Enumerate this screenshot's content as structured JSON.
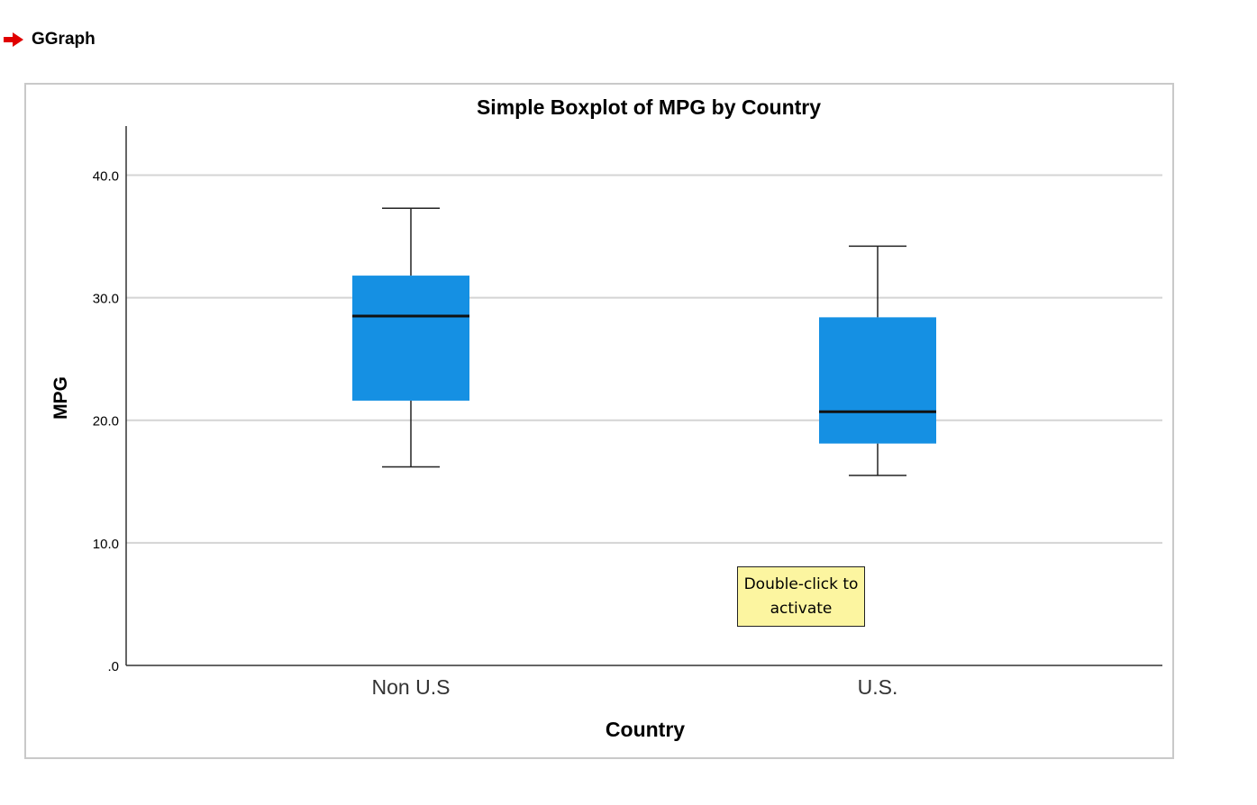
{
  "header": {
    "title": "GGraph",
    "icon": "red-arrow-icon",
    "icon_color": "#e00000"
  },
  "tooltip": {
    "text": "Double-click to activate"
  },
  "chart_data": {
    "type": "boxplot",
    "title": "Simple Boxplot of MPG by Country",
    "xlabel": "Country",
    "ylabel": "MPG",
    "ylim": [
      0,
      44
    ],
    "yticks": [
      {
        "value": 0,
        "label": ".0"
      },
      {
        "value": 10,
        "label": "10.0"
      },
      {
        "value": 20,
        "label": "20.0"
      },
      {
        "value": 30,
        "label": "30.0"
      },
      {
        "value": 40,
        "label": "40.0"
      }
    ],
    "grid": true,
    "box_color": "#1590e3",
    "categories": [
      "Non U.S",
      "U.S."
    ],
    "boxes": [
      {
        "category": "Non U.S",
        "whisker_low": 16.2,
        "q1": 21.6,
        "median": 28.5,
        "q3": 31.8,
        "whisker_high": 37.3
      },
      {
        "category": "U.S.",
        "whisker_low": 15.5,
        "q1": 18.1,
        "median": 20.7,
        "q3": 28.4,
        "whisker_high": 34.2
      }
    ]
  }
}
